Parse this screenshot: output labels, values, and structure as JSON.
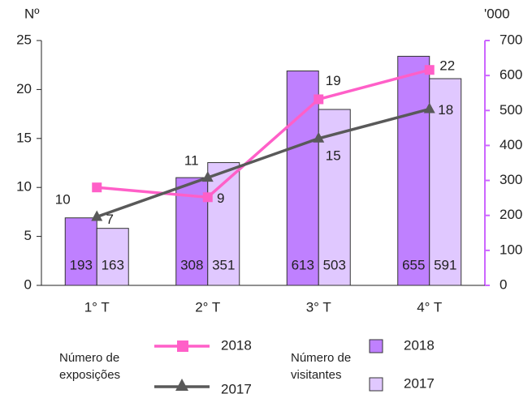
{
  "chart_data": {
    "type": "bar_line",
    "categories": [
      "1° T",
      "2° T",
      "3° T",
      "4° T"
    ],
    "series": [
      {
        "name": "2018",
        "type": "line",
        "color": "#ff5fc8",
        "values": [
          10,
          9,
          19,
          22
        ]
      },
      {
        "name": "2017",
        "type": "line",
        "color": "#595959",
        "values": [
          7,
          11,
          15,
          18
        ]
      },
      {
        "name": "2018",
        "type": "bar",
        "axis": "y2",
        "color": "#bf80ff",
        "values": [
          193,
          308,
          613,
          655
        ]
      },
      {
        "name": "2017",
        "type": "bar",
        "axis": "y2",
        "color": "#e0c8ff",
        "values": [
          163,
          351,
          503,
          591
        ]
      }
    ],
    "ylim": [
      0,
      25
    ],
    "yticks": [
      0,
      5,
      10,
      15,
      20,
      25
    ],
    "y2lim": [
      0,
      700
    ],
    "y2ticks": [
      0,
      100,
      200,
      300,
      400,
      500,
      600,
      700
    ],
    "y_label": "Nº",
    "y2_label": "'000",
    "legend_groups": {
      "line": "Número de exposições",
      "bar": "Número de visitantes"
    },
    "y2_color": "#cc66ff"
  }
}
